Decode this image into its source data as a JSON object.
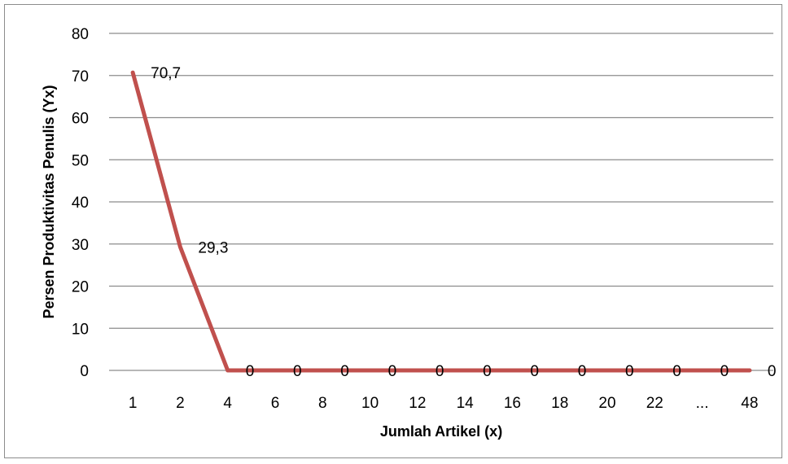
{
  "chart_data": {
    "type": "line",
    "categories": [
      "1",
      "2",
      "4",
      "6",
      "8",
      "10",
      "12",
      "14",
      "16",
      "18",
      "20",
      "22",
      "...",
      "48"
    ],
    "series": [
      {
        "values": [
          70.7,
          29.3,
          0,
          0,
          0,
          0,
          0,
          0,
          0,
          0,
          0,
          0,
          0,
          0
        ],
        "data_labels": [
          "70,7",
          "29,3",
          "0",
          "0",
          "0",
          "0",
          "0",
          "0",
          "0",
          "0",
          "0",
          "0",
          "0",
          "0"
        ],
        "color": "#c0504d"
      }
    ],
    "xlabel": "Jumlah Artikel (x)",
    "ylabel": "Persen Produktivitas Penulis (Yx)",
    "ylim": [
      0,
      80
    ],
    "yticks": [
      "0",
      "10",
      "20",
      "30",
      "40",
      "50",
      "60",
      "70",
      "80"
    ],
    "grid": "horizontal",
    "legend": "none"
  }
}
